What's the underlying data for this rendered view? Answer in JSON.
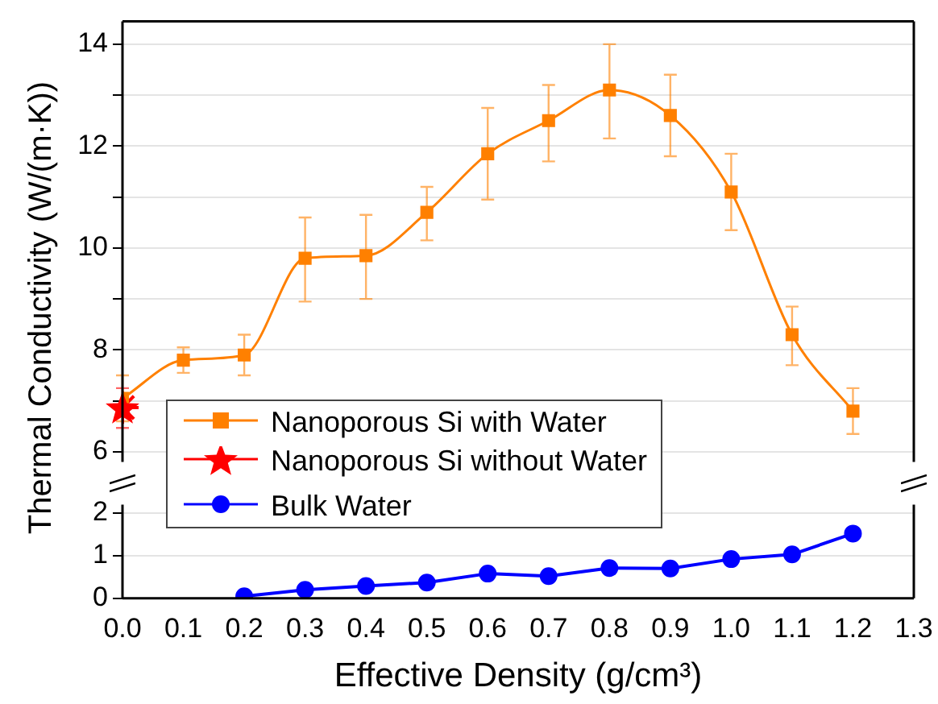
{
  "chart_data": [
    {
      "type": "line",
      "ylabel": "Thermal Conductivity (W/(m·K))",
      "x": [
        0,
        0.1,
        0.2,
        0.3,
        0.4,
        0.5,
        0.6,
        0.7,
        0.8,
        0.9,
        1.0,
        1.1,
        1.2
      ],
      "xlim": [
        0,
        1.3
      ],
      "ylim": [
        5.8,
        14.45
      ],
      "yticks": [
        6,
        {
          "value": 7,
          "label": null
        },
        8,
        {
          "value": 9,
          "label": null
        },
        10,
        {
          "value": 11,
          "label": null
        },
        12,
        {
          "value": 13,
          "label": null
        },
        14
      ],
      "tick_labels": "y",
      "grid": "y",
      "legend": "bottom left",
      "series": [
        {
          "name": "Nanoporous Si with Water",
          "color": "#ff8000",
          "marker": "square",
          "values": [
            7.05,
            7.8,
            7.9,
            9.8,
            9.85,
            10.7,
            11.85,
            12.5,
            13.1,
            12.6,
            11.1,
            8.3,
            6.8
          ],
          "errors": [
            [
              6.6,
              7.5
            ],
            [
              7.55,
              8.05
            ],
            [
              7.5,
              8.3
            ],
            [
              8.95,
              10.6
            ],
            [
              9.0,
              10.65
            ],
            [
              10.15,
              11.2
            ],
            [
              10.95,
              12.75
            ],
            [
              11.7,
              13.2
            ],
            [
              12.15,
              14.0
            ],
            [
              11.8,
              13.4
            ],
            [
              10.35,
              11.85
            ],
            [
              7.7,
              8.85
            ],
            [
              6.35,
              7.25
            ]
          ]
        },
        {
          "name": "Nanoporous Si without Water",
          "type": "scatter",
          "color": "#ff0000",
          "marker": "star",
          "x": [
            0
          ],
          "values": [
            6.87
          ],
          "errors": [
            [
              6.47,
              7.25
            ]
          ]
        }
      ]
    },
    {
      "type": "line",
      "xlabel": "Effective Density (g/cm³)",
      "x": [
        0.2,
        0.3,
        0.4,
        0.5,
        0.6,
        0.7,
        0.8,
        0.9,
        1.0,
        1.1,
        1.2
      ],
      "xlim": [
        0,
        1.3
      ],
      "xticks": [
        {
          "value": 0,
          "label": "0.0"
        },
        0.1,
        0.2,
        0.3,
        0.4,
        0.5,
        0.6,
        0.7,
        0.8,
        0.9,
        {
          "value": 1,
          "label": "1.0"
        },
        1.1,
        1.2,
        1.3
      ],
      "ylim": [
        0,
        2.2
      ],
      "yticks": [
        0,
        1,
        2
      ],
      "grid": "y",
      "legend": "top left",
      "series": [
        {
          "name": "Bulk Water",
          "color": "#0000ff",
          "marker": "circle",
          "values": [
            0.05,
            0.2,
            0.29,
            0.37,
            0.58,
            0.52,
            0.71,
            0.7,
            0.92,
            1.03,
            1.52
          ]
        }
      ]
    }
  ]
}
